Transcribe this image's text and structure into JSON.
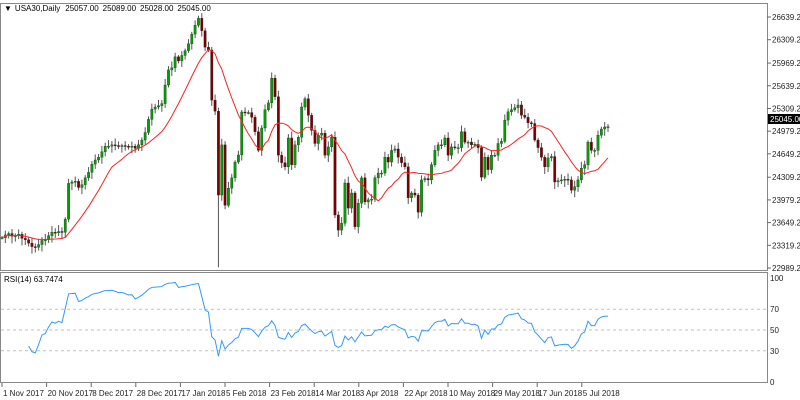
{
  "header": {
    "arrow": "▼",
    "symbol": "USA30,Daily",
    "open": "25057.00",
    "high": "25089.00",
    "low": "25028.00",
    "close": "25045.00"
  },
  "rsi_panel": {
    "label": "RSI(14) 63.7474"
  },
  "current_price_tag": "25045.00",
  "colors": {
    "bull": "#00a000",
    "bear": "#7a0000",
    "wick": "#555555",
    "ma": "#ff2020",
    "rsi": "#3399ff",
    "level": "#c0c0c0",
    "price_tag_bg": "#000000"
  },
  "chart_data": [
    {
      "type": "candlestick",
      "title": "USA30,Daily",
      "price_ticks": [
        "26639.20",
        "26309.20",
        "25969.20",
        "25639.20",
        "25309.20",
        "24979.20",
        "24649.20",
        "24309.20",
        "23979.20",
        "23649.20",
        "23319.20",
        "22989.20"
      ],
      "ylim": [
        22989.2,
        26639.2
      ],
      "date_labels": [
        "1 Nov 2017",
        "20 Nov 2017",
        "8 Dec 2017",
        "28 Dec 2017",
        "17 Jan 2018",
        "5 Feb 2018",
        "23 Feb 2018",
        "14 Mar 2018",
        "3 Apr 2018",
        "22 Apr 2018",
        "10 May 2018",
        "29 May 2018",
        "17 Jun 2018",
        "5 Jul 2018"
      ],
      "moving_average": "red overlay",
      "closes": [
        23430,
        23470,
        23490,
        23450,
        23460,
        23480,
        23420,
        23400,
        23350,
        23300,
        23290,
        23330,
        23390,
        23400,
        23460,
        23510,
        23500,
        23520,
        23510,
        23700,
        24220,
        24240,
        24250,
        24160,
        24200,
        24300,
        24380,
        24500,
        24560,
        24600,
        24680,
        24760,
        24760,
        24780,
        24770,
        24760,
        24770,
        24760,
        24750,
        24760,
        24730,
        24780,
        24850,
        24960,
        25150,
        25300,
        25330,
        25350,
        25380,
        25650,
        25870,
        25900,
        26060,
        26000,
        26080,
        26150,
        26250,
        26390,
        26520,
        26620,
        26440,
        26200,
        26160,
        25430,
        25270,
        24050,
        24780,
        23900,
        24150,
        24300,
        24530,
        24633,
        25258,
        25250,
        25250,
        25180,
        24970,
        24700,
        25025,
        25290,
        25390,
        25750,
        25480,
        24630,
        24520,
        24460,
        24880,
        24490,
        24780,
        24890,
        25330,
        25450,
        25210,
        24990,
        24800,
        24920,
        24950,
        24630,
        24750,
        24890,
        23760,
        23540,
        23640,
        24225,
        23860,
        24080,
        23590,
        23930,
        24300,
        23950,
        23980,
        23990,
        24300,
        24370,
        24370,
        24600,
        24530,
        24700,
        24720,
        24600,
        24520,
        24460,
        24010,
        24080,
        24050,
        23800,
        24270,
        24290,
        24270,
        24490,
        24700,
        24780,
        24780,
        24880,
        24630,
        24750,
        24740,
        24740,
        24970,
        24820,
        24820,
        24780,
        24790,
        24740,
        24310,
        24600,
        24420,
        24630,
        24630,
        24800,
        24830,
        25140,
        25260,
        25290,
        25320,
        25360,
        25210,
        25180,
        25100,
        25090,
        24850,
        24740,
        24600,
        24460,
        24590,
        24610,
        24240,
        24260,
        24270,
        24280,
        24270,
        24120,
        24170,
        24270,
        24440,
        24490,
        24820,
        24700,
        24700,
        24920,
        25010,
        25040,
        25045
      ]
    },
    {
      "type": "line",
      "title": "RSI(14) 63.7474",
      "ylim": [
        0,
        100
      ],
      "levels": [
        70,
        50,
        30
      ],
      "y_ticks": [
        "100",
        "70",
        "50",
        "30",
        "0"
      ],
      "last_value": 63.7474
    }
  ]
}
